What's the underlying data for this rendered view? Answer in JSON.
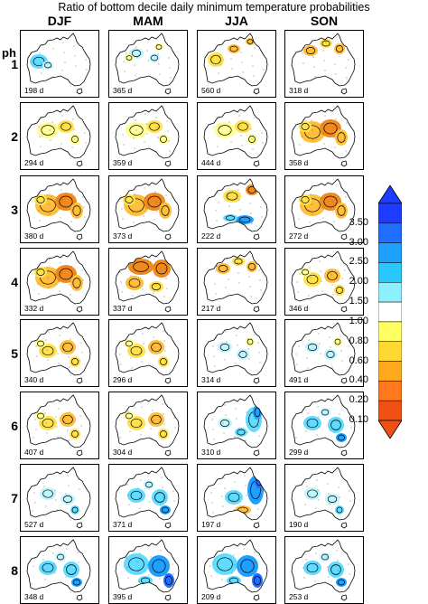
{
  "title": "Ratio of bottom decile daily minimum temperature probabilities",
  "phase_header": "ph",
  "seasons": [
    "DJF",
    "MAM",
    "JJA",
    "SON"
  ],
  "phases": [
    "1",
    "2",
    "3",
    "4",
    "5",
    "6",
    "7",
    "8"
  ],
  "days": [
    [
      "198 d",
      "365 d",
      "560 d",
      "318 d"
    ],
    [
      "294 d",
      "359 d",
      "444 d",
      "358 d"
    ],
    [
      "380 d",
      "373 d",
      "222 d",
      "272 d"
    ],
    [
      "332 d",
      "337 d",
      "217 d",
      "346 d"
    ],
    [
      "340 d",
      "296 d",
      "314 d",
      "491 d"
    ],
    [
      "407 d",
      "304 d",
      "310 d",
      "299 d"
    ],
    [
      "527 d",
      "371 d",
      "197 d",
      "190 d"
    ],
    [
      "348 d",
      "395 d",
      "209 d",
      "253 d"
    ]
  ],
  "map_pattern": [
    [
      "cool-west",
      "mixed-light",
      "warm-west",
      "warm-north"
    ],
    [
      "light-warm",
      "light-warm",
      "light-warm",
      "warm-strong"
    ],
    [
      "warm-strong",
      "warm-strong",
      "warm-north-cool-south",
      "warm-strong"
    ],
    [
      "warm-strong",
      "warm-strong-north",
      "warm-north",
      "warm-medium"
    ],
    [
      "warm-medium",
      "warm-medium",
      "light-cool",
      "light-cool"
    ],
    [
      "warm-medium",
      "warm-medium",
      "cool-east",
      "cool-medium"
    ],
    [
      "cool-light",
      "cool-medium",
      "cool-strong-east",
      "cool-light"
    ],
    [
      "cool-medium",
      "cool-strong",
      "cool-strong",
      "cool-medium"
    ]
  ],
  "colorbar": {
    "labels": [
      "3.50",
      "3.00",
      "2.50",
      "2.00",
      "1.50",
      "1.00",
      "0.80",
      "0.60",
      "0.40",
      "0.20",
      "0.10"
    ],
    "colors": [
      "#1e3cff",
      "#1e6eff",
      "#1ea0ff",
      "#28c8ff",
      "#8cf0ff",
      "#ffffff",
      "#ffff64",
      "#ffd832",
      "#ffaa1e",
      "#ff781e",
      "#f05014"
    ]
  }
}
